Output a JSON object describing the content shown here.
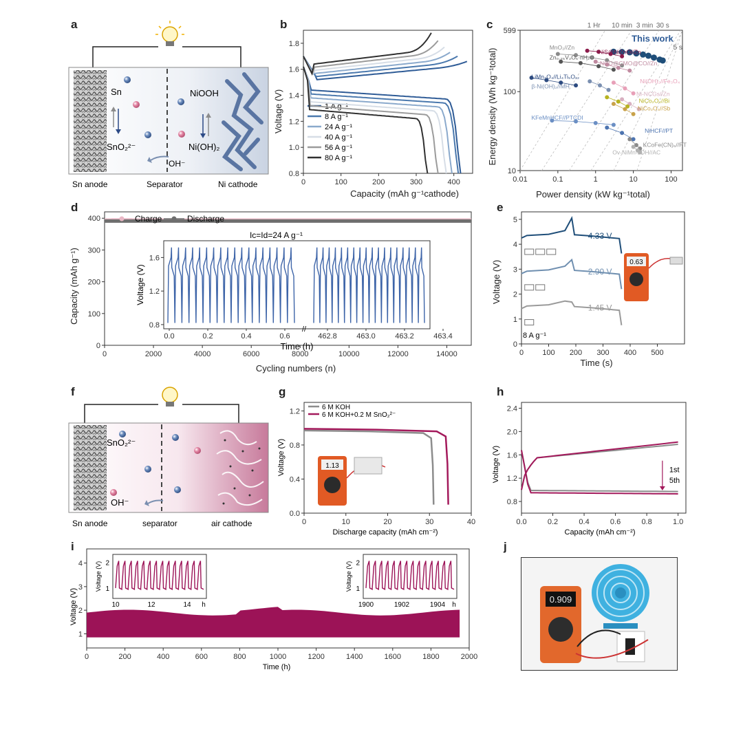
{
  "labels": {
    "a": "a",
    "b": "b",
    "c": "c",
    "d": "d",
    "e": "e",
    "f": "f",
    "g": "g",
    "h": "h",
    "i": "i",
    "j": "j"
  },
  "panel_a": {
    "sn": "Sn",
    "sno2": "SnO₂²⁻",
    "niooh": "NiOOH",
    "nioh2": "Ni(OH)₂",
    "oh": "OH⁻",
    "anode": "Sn anode",
    "separator": "Separator",
    "cathode": "Ni cathode"
  },
  "panel_f": {
    "sno2": "SnO₂²⁻",
    "oh": "OH⁻",
    "anode": "Sn anode",
    "separator": "separator",
    "cathode": "air cathode"
  },
  "chart_data": [
    {
      "id": "b",
      "type": "line",
      "xlabel": "Capacity (mAh g⁻¹cathode)",
      "ylabel": "Voltage (V)",
      "xlim": [
        0,
        450
      ],
      "ylim": [
        0.8,
        1.9
      ],
      "xticks": [
        "0",
        "100",
        "200",
        "300",
        "400"
      ],
      "yticks": [
        "0.8",
        "1.0",
        "1.2",
        "1.4",
        "1.6",
        "1.8"
      ],
      "series": [
        {
          "name": "1 A g⁻¹",
          "color": "#2e5b96",
          "charge_end": [
            435,
            1.65
          ],
          "discharge_end": 418
        },
        {
          "name": "8 A g⁻¹",
          "color": "#4a78ad",
          "charge_end": [
            410,
            1.69
          ],
          "discharge_end": 412
        },
        {
          "name": "24 A g⁻¹",
          "color": "#8aa9cc",
          "charge_end": [
            390,
            1.72
          ],
          "discharge_end": 395
        },
        {
          "name": "40 A g⁻¹",
          "color": "#d6dde6",
          "charge_end": [
            375,
            1.76
          ],
          "discharge_end": 380
        },
        {
          "name": "56 A g⁻¹",
          "color": "#9b9b9b",
          "charge_end": [
            358,
            1.81
          ],
          "discharge_end": 358
        },
        {
          "name": "80 A g⁻¹",
          "color": "#303030",
          "charge_end": [
            340,
            1.87
          ],
          "discharge_end": 330
        }
      ]
    },
    {
      "id": "c",
      "type": "scatter",
      "xlabel": "Power density (kW kg⁻¹total)",
      "ylabel": "Energy density (Wh kg⁻¹total)",
      "xscale": "log",
      "yscale": "log",
      "xlim": [
        0.01,
        200
      ],
      "ylim": [
        10,
        599
      ],
      "xticks": [
        "0.01",
        "0.1",
        "1",
        "10",
        "100"
      ],
      "yticks": [
        "10",
        "100",
        "599"
      ],
      "time_labels": [
        "1 Hr",
        "10 min",
        "3 min",
        "30 s",
        "5 s"
      ],
      "series": [
        {
          "name": "This work",
          "color": "#1f4e79",
          "points": [
            [
              3,
              320
            ],
            [
              5,
              318
            ],
            [
              8,
              315
            ],
            [
              12,
              305
            ],
            [
              18,
              295
            ],
            [
              25,
              285
            ],
            [
              35,
              270
            ],
            [
              50,
              255
            ],
            [
              60,
              248
            ]
          ]
        },
        {
          "name": "MnO₂//Zn",
          "color": "#8a8a8a",
          "points": [
            [
              0.1,
              300
            ],
            [
              0.3,
              290
            ],
            [
              0.8,
              270
            ],
            [
              2,
              250
            ],
            [
              5,
              215
            ]
          ]
        },
        {
          "name": "Zn₀.₂₅V₂O₅·nH₂O",
          "color": "#555555",
          "points": [
            [
              0.12,
              240
            ],
            [
              0.4,
              230
            ],
            [
              1.2,
              210
            ],
            [
              3,
              190
            ]
          ]
        },
        {
          "name": "NiS@NiZnO//Zn",
          "color": "#8b1a4a",
          "points": [
            [
              0.6,
              330
            ],
            [
              1.2,
              320
            ],
            [
              2.5,
              300
            ],
            [
              5,
              280
            ]
          ]
        },
        {
          "name": "NCO@CMO@CO//Zn",
          "color": "#c08aa0",
          "points": [
            [
              1,
              240
            ],
            [
              2,
              220
            ],
            [
              4,
              200
            ],
            [
              8,
              185
            ]
          ]
        },
        {
          "name": "LiMn₂O₄//Li₄Ti₅O₁₂",
          "color": "#2d4b80",
          "points": [
            [
              0.02,
              150
            ],
            [
              0.05,
              140
            ],
            [
              0.12,
              130
            ],
            [
              0.3,
              120
            ]
          ]
        },
        {
          "name": "Ni(OH)₂//Fe₃O₄",
          "color": "#e8a0b8",
          "points": [
            [
              3,
              130
            ],
            [
              6,
              110
            ],
            [
              10,
              95
            ]
          ]
        },
        {
          "name": "β-Ni(OH)₂//MH",
          "color": "#7a8fb0",
          "points": [
            [
              0.7,
              135
            ],
            [
              1.3,
              120
            ],
            [
              2.2,
              105
            ]
          ]
        },
        {
          "name": "Ni-NCGs//Zn",
          "color": "#d8b0c0",
          "points": [
            [
              5,
              80
            ],
            [
              8,
              70
            ],
            [
              14,
              60
            ]
          ]
        },
        {
          "name": "NiCo₂O₄//Bi",
          "color": "#b7b320",
          "points": [
            [
              2,
              85
            ],
            [
              4,
              75
            ],
            [
              7,
              65
            ]
          ]
        },
        {
          "name": "NiCo₂O₄//Sb",
          "color": "#c9a24a",
          "points": [
            [
              3,
              70
            ],
            [
              6,
              60
            ],
            [
              10,
              52
            ]
          ]
        },
        {
          "name": "KFeMnHCF//PTCDI",
          "color": "#6b8fc4",
          "points": [
            [
              0.07,
              43
            ],
            [
              0.3,
              42
            ],
            [
              1,
              40
            ],
            [
              3,
              38
            ]
          ]
        },
        {
          "name": "NiHCF//PT",
          "color": "#4d74b0",
          "points": [
            [
              2,
              35
            ],
            [
              5,
              30
            ],
            [
              10,
              25
            ]
          ]
        },
        {
          "name": "KCoFe(CN)₆//PT",
          "color": "#8a8a8a",
          "points": [
            [
              8,
              25
            ],
            [
              12,
              21
            ],
            [
              15,
              19
            ]
          ]
        },
        {
          "name": "Ov-NiMn-LDH//AC",
          "color": "#b0b0b0",
          "points": [
            [
              10,
              20
            ],
            [
              13,
              18
            ],
            [
              15,
              17
            ]
          ]
        }
      ],
      "this_work_label": "This work"
    },
    {
      "id": "d",
      "type": "scatter",
      "xlabel": "Cycling numbers (n)",
      "ylabel": "Capacity (mAh g⁻¹)",
      "xlim": [
        0,
        15000
      ],
      "ylim": [
        0,
        420
      ],
      "xticks": [
        "0",
        "2000",
        "4000",
        "6000",
        "8000",
        "10000",
        "12000",
        "14000"
      ],
      "yticks": [
        "0",
        "100",
        "200",
        "300",
        "400"
      ],
      "series": [
        {
          "name": "Charge",
          "color": "#e9b7c5",
          "value": 395
        },
        {
          "name": "Discharge",
          "color": "#6e6e6e",
          "value": 391
        }
      ],
      "inset": {
        "title": "Ic=Id=24 A g⁻¹",
        "xlabel": "Time (h)",
        "ylabel": "Voltage (V)",
        "xticks": [
          "0.0",
          "0.2",
          "0.4",
          "0.6",
          "462.8",
          "463.0",
          "463.2",
          "463.4"
        ],
        "yticks": [
          "0.8",
          "1.2",
          "1.6"
        ],
        "color": "#3d64a8",
        "vmin": 0.8,
        "vmax": 1.72
      }
    },
    {
      "id": "e",
      "type": "line",
      "xlabel": "Time (s)",
      "ylabel": "Voltage (V)",
      "xlim": [
        0,
        600
      ],
      "ylim": [
        0,
        5.3
      ],
      "xticks": [
        "0",
        "100",
        "200",
        "300",
        "400",
        "500"
      ],
      "yticks": [
        "0",
        "1",
        "2",
        "3",
        "4",
        "5"
      ],
      "annotation": "8 A g⁻¹",
      "series": [
        {
          "name": "4.33 V",
          "color": "#1f4e79",
          "base": 4.25,
          "peak": 5.05,
          "plateau": 4.33
        },
        {
          "name": "2.90 V",
          "color": "#6f8fb0",
          "base": 2.82,
          "peak": 3.38,
          "plateau": 2.9
        },
        {
          "name": "1.45 V",
          "color": "#9a9a9a",
          "base": 1.42,
          "peak": 1.68,
          "plateau": 1.45
        }
      ]
    },
    {
      "id": "g",
      "type": "line",
      "xlabel": "Discharge capacity (mAh cm⁻²)",
      "ylabel": "Voltage (V)",
      "xlim": [
        0,
        40
      ],
      "ylim": [
        0,
        1.3
      ],
      "xticks": [
        "0",
        "10",
        "20",
        "30",
        "40"
      ],
      "yticks": [
        "0.0",
        "0.4",
        "0.8",
        "1.2"
      ],
      "series": [
        {
          "name": "6 M KOH",
          "color": "#8c8c8c",
          "plateau": 0.96,
          "end": 31
        },
        {
          "name": "6 M KOH+0.2 M SnO₂²⁻",
          "color": "#a3195b",
          "plateau": 0.98,
          "end": 34.5
        }
      ]
    },
    {
      "id": "h",
      "type": "line",
      "xlabel": "Capacity (mAh cm⁻²)",
      "ylabel": "Voltage (V)",
      "xlim": [
        0,
        1.05
      ],
      "ylim": [
        0.6,
        2.5
      ],
      "xticks": [
        "0.0",
        "0.2",
        "0.4",
        "0.6",
        "0.8",
        "1.0"
      ],
      "yticks": [
        "0.8",
        "1.2",
        "1.6",
        "2.0",
        "2.4"
      ],
      "annotations": [
        "1st",
        "5th"
      ],
      "series": [
        {
          "name": "1st",
          "color": "#8c8c8c",
          "charge_end": 1.78,
          "discharge": 0.99
        },
        {
          "name": "5th",
          "color": "#a3195b",
          "charge_end": 1.82,
          "discharge": 0.95
        }
      ]
    },
    {
      "id": "i",
      "type": "area",
      "xlabel": "Time (h)",
      "ylabel": "Voltage (V)",
      "xlim": [
        0,
        2000
      ],
      "ylim": [
        0.4,
        4.6
      ],
      "xticks": [
        "0",
        "200",
        "400",
        "600",
        "800",
        "1000",
        "1200",
        "1400",
        "1600",
        "1800",
        "2000"
      ],
      "yticks": [
        "1",
        "2",
        "3",
        "4"
      ],
      "color": "#9c1357",
      "band_low": 0.85,
      "band_high": 1.9,
      "insets": [
        {
          "xticks": [
            "10",
            "12",
            "14"
          ],
          "xunit": "h",
          "yticks": [
            "1",
            "2"
          ],
          "ylabel": "Voltage (V)"
        },
        {
          "xticks": [
            "1900",
            "1902",
            "1904"
          ],
          "xunit": "h",
          "yticks": [
            "1",
            "2"
          ],
          "ylabel": "Voltage (V)"
        }
      ]
    }
  ],
  "photos": {
    "multimeter_e": "0.63",
    "multimeter_g": "1.13",
    "multimeter_j": "0.909"
  }
}
